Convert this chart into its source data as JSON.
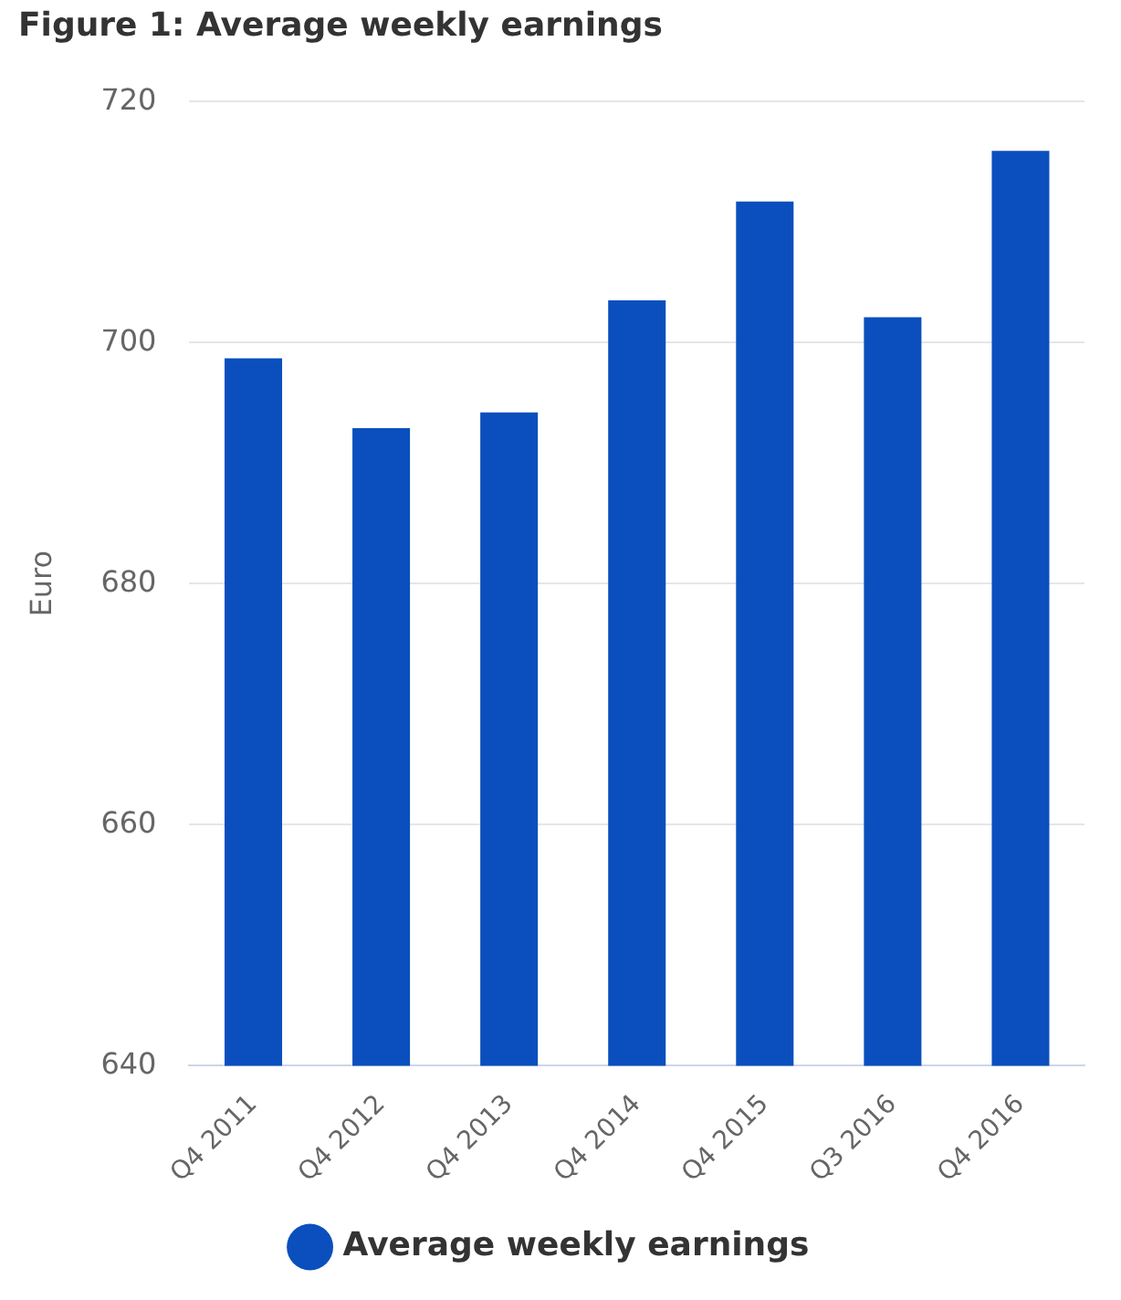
{
  "chart_data": {
    "type": "bar",
    "title": "Figure 1: Average weekly earnings",
    "ylabel": "Euro",
    "categories": [
      "Q4 2011",
      "Q4 2012",
      "Q4 2013",
      "Q4 2014",
      "Q4 2015",
      "Q3 2016",
      "Q4 2016"
    ],
    "series": [
      {
        "name": "Average weekly earnings",
        "color": "#0a4fbd",
        "values": [
          698.7,
          692.9,
          694.2,
          703.5,
          711.7,
          702.1,
          715.9
        ]
      }
    ],
    "ylim": [
      640,
      720
    ],
    "yticks": [
      640,
      660,
      680,
      700,
      720
    ],
    "grid": "y",
    "legend": "bottom"
  }
}
